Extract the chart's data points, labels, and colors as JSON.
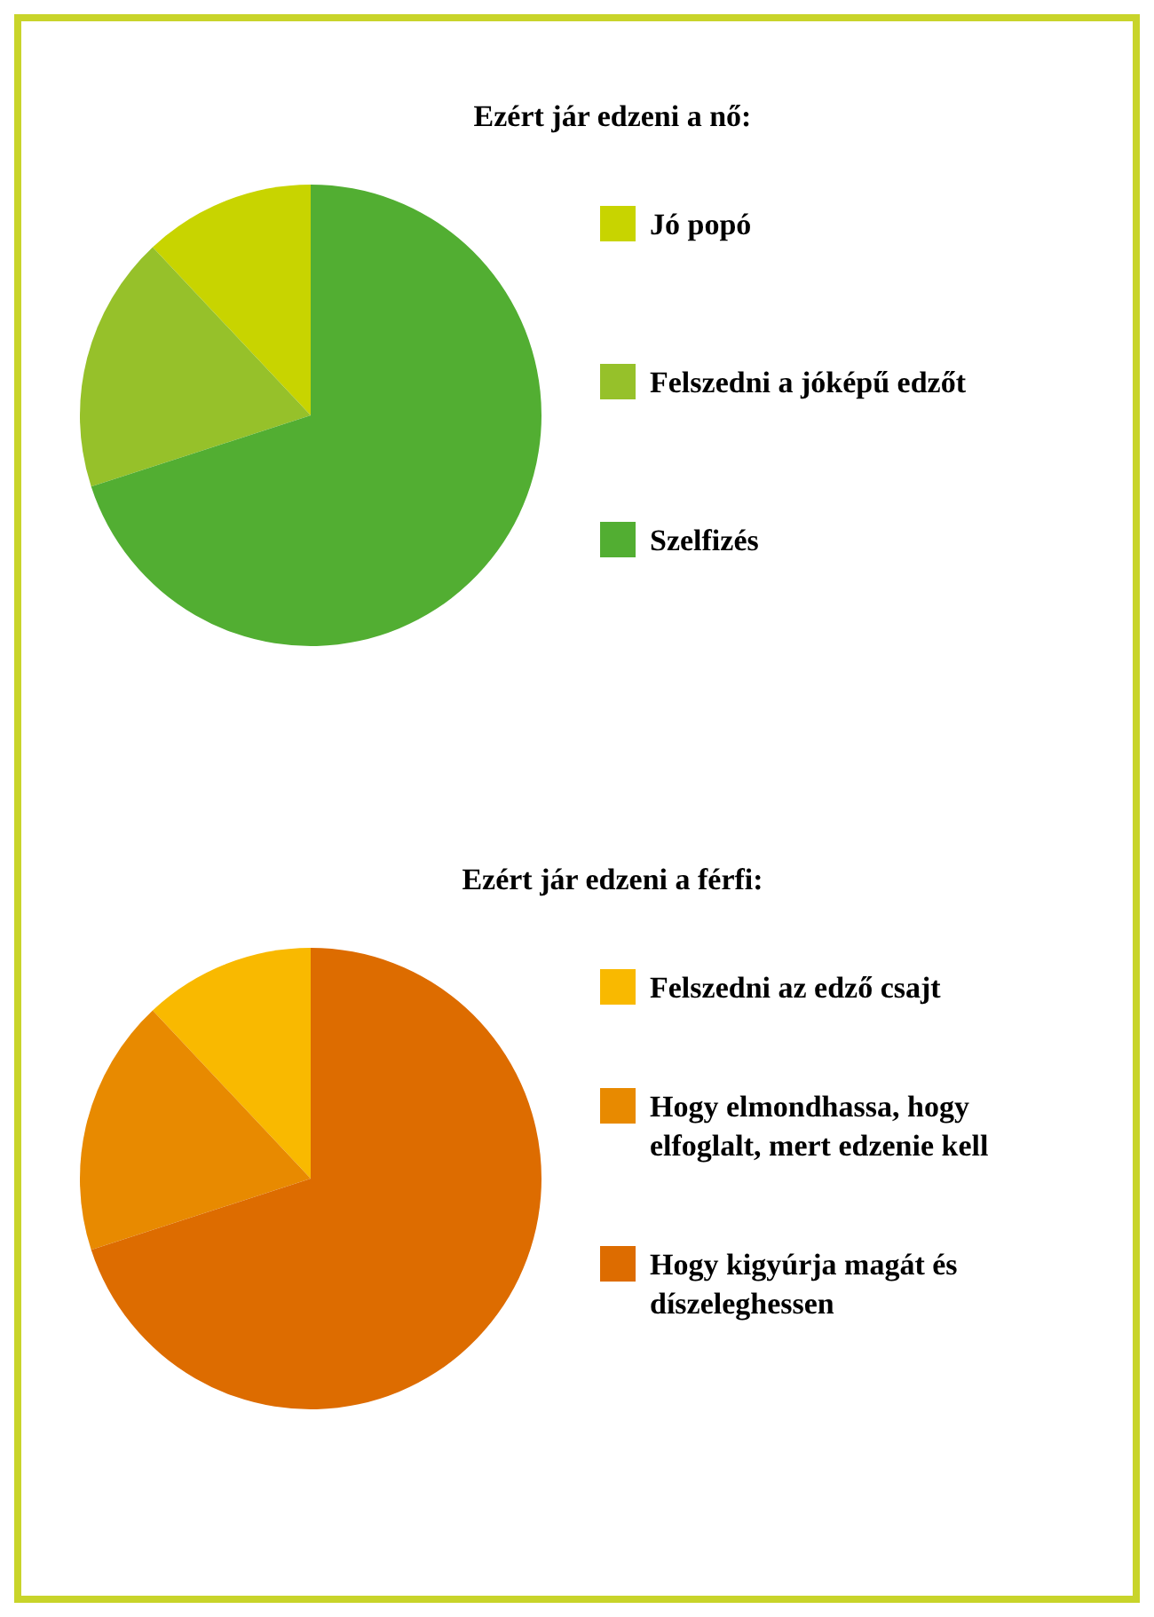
{
  "chart_data": [
    {
      "type": "pie",
      "title": "Ezért jár edzeni a nő:",
      "categories": [
        "Jó popó",
        "Felszedni a jóképű edzőt",
        "Szelfizés"
      ],
      "values": [
        12,
        18,
        70
      ],
      "colors": [
        "#c8d400",
        "#96c12a",
        "#52ae32"
      ],
      "legend": "right"
    },
    {
      "type": "pie",
      "title": "Ezért jár edzeni a férfi:",
      "categories": [
        "Felszedni az edző csajt",
        "Hogy elmondhassa, hogy elfoglalt, mert edzenie kell",
        "Hogy kigyúrja magát és díszeleghessen"
      ],
      "values": [
        12,
        18,
        70
      ],
      "colors": [
        "#f9b900",
        "#e88a00",
        "#dd6c00"
      ],
      "legend": "right"
    }
  ]
}
